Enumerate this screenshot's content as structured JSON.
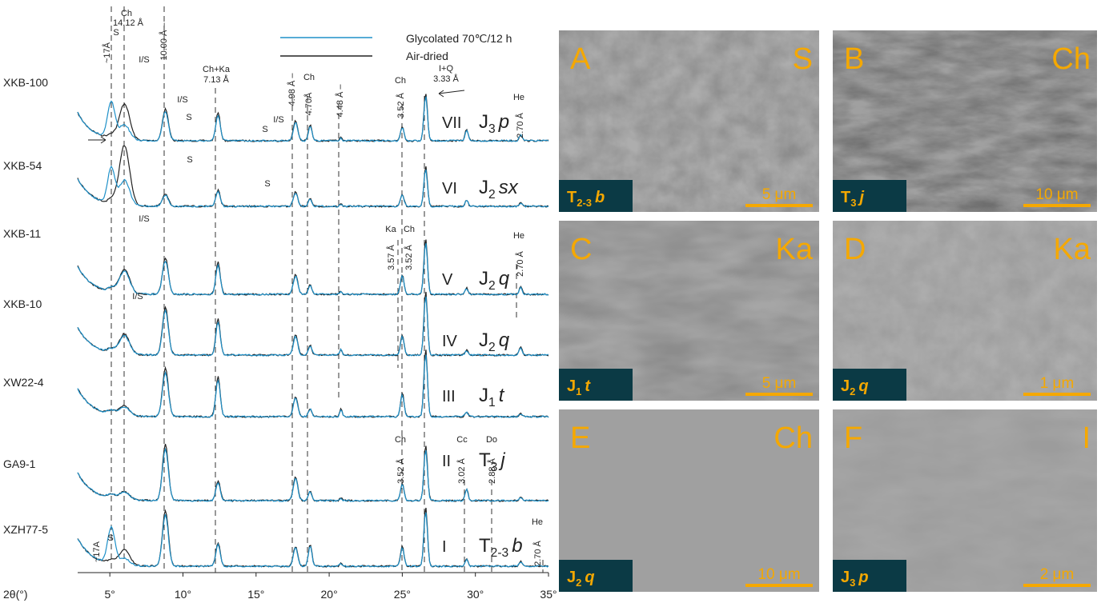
{
  "xrd": {
    "legend": [
      "Glycolated 70℃/12 h",
      "Air-dried"
    ],
    "legend_colors": [
      "#1e90c8",
      "#222222"
    ],
    "x_axis_label": "2θ(°)",
    "xlim": [
      2.8,
      35
    ],
    "xticks": [
      {
        "value": 5,
        "label": "5°"
      },
      {
        "value": 10,
        "label": "10°"
      },
      {
        "value": 15,
        "label": "15°"
      },
      {
        "value": 20,
        "label": "20°"
      },
      {
        "value": 25,
        "label": "25°"
      },
      {
        "value": 30,
        "label": "30°"
      },
      {
        "value": 35,
        "label": "35°"
      }
    ],
    "samples": [
      {
        "name": "XKB-100",
        "stage": "VII",
        "formation": {
          "base": "J",
          "sub": "3",
          "suffix": "p"
        }
      },
      {
        "name": "XKB-54",
        "stage": "VI",
        "formation": {
          "base": "J",
          "sub": "2",
          "suffix": "sx"
        }
      },
      {
        "name": "XKB-11",
        "stage": "V",
        "formation": {
          "base": "J",
          "sub": "2",
          "suffix": "q"
        }
      },
      {
        "name": "XKB-10",
        "stage": "IV",
        "formation": {
          "base": "J",
          "sub": "2",
          "suffix": "q"
        }
      },
      {
        "name": "XW22-4",
        "stage": "III",
        "formation": {
          "base": "J",
          "sub": "1",
          "suffix": "t"
        }
      },
      {
        "name": "GA9-1",
        "stage": "II",
        "formation": {
          "base": "T",
          "sub": "3",
          "suffix": "j"
        }
      },
      {
        "name": "XZH77-5",
        "stage": "I",
        "formation": {
          "base": "T",
          "sub": "2-3",
          "suffix": "b"
        }
      }
    ],
    "annotations": [
      "~17Å",
      "S",
      "Ch",
      "14.12 Å",
      "10.00 Å –",
      "I/S",
      "Ch+Ka",
      "7.13 Å",
      "I/S",
      "S",
      "S",
      "I/S",
      "4.98 Å –",
      "Ch",
      "4.70Å",
      "4.48 Å –",
      "Ch",
      "3.52 Å",
      "I+Q",
      "3.33 Å",
      "He",
      "2.70 Å",
      "S",
      "S",
      "I/S",
      "Ka",
      "3.57 Å",
      "Ch",
      "3.52 Å",
      "He",
      "2.70 Å",
      "I/S",
      "Ch",
      "3.52 Å",
      "Cc",
      "3.02 Å",
      "Do",
      "2.88 Å",
      "~17A",
      "S",
      "He",
      "2.70 Å"
    ]
  },
  "sem_panels": [
    {
      "letter": "A",
      "mineral": "S",
      "formation": {
        "base": "T",
        "sub": "2-3",
        "suffix": "b"
      },
      "scale": "5 μm"
    },
    {
      "letter": "B",
      "mineral": "Ch",
      "formation": {
        "base": "T",
        "sub": "3",
        "suffix": "j"
      },
      "scale": "10 μm"
    },
    {
      "letter": "C",
      "mineral": "Ka",
      "formation": {
        "base": "J",
        "sub": "1",
        "suffix": "t"
      },
      "scale": "5 μm"
    },
    {
      "letter": "D",
      "mineral": "Ka",
      "formation": {
        "base": "J",
        "sub": "2",
        "suffix": "q"
      },
      "scale": "1 μm"
    },
    {
      "letter": "E",
      "mineral": "Ch",
      "formation": {
        "base": "J",
        "sub": "2",
        "suffix": "q"
      },
      "scale": "10 μm"
    },
    {
      "letter": "F",
      "mineral": "I",
      "formation": {
        "base": "J",
        "sub": "3",
        "suffix": "p"
      },
      "scale": "2 μm"
    }
  ]
}
